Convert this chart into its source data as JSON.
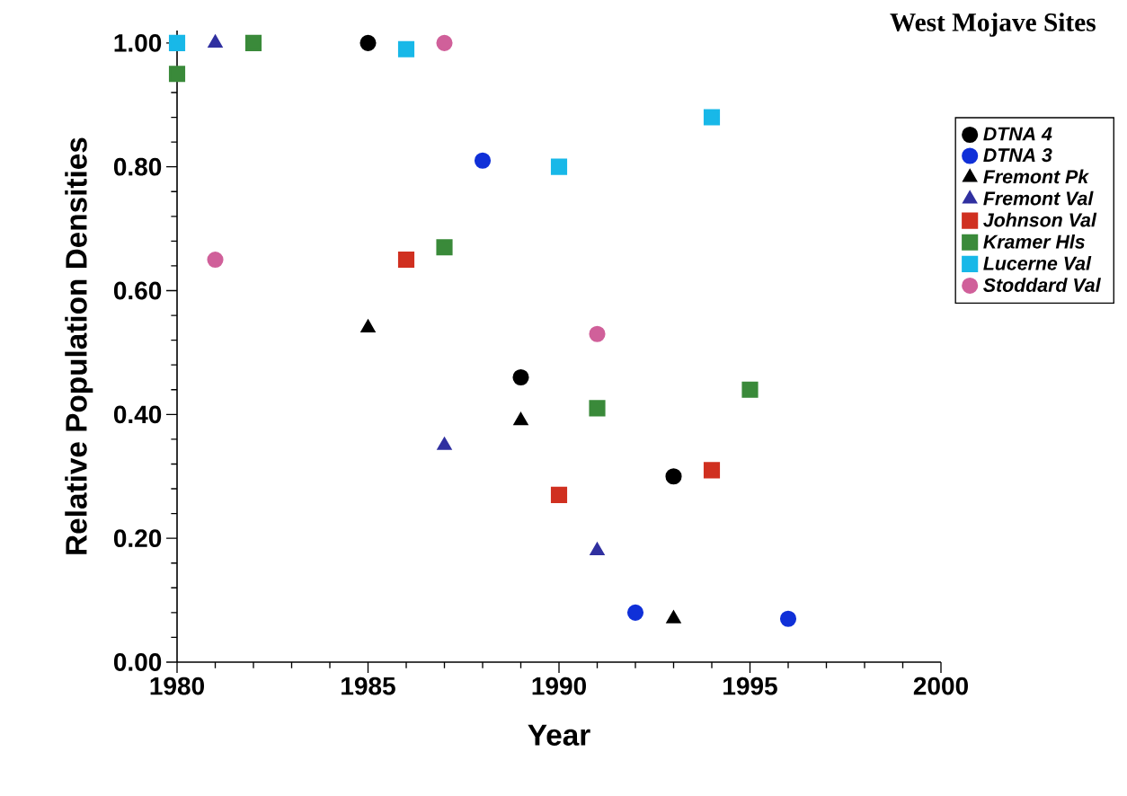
{
  "chart_data": {
    "type": "scatter",
    "title": "West Mojave Sites",
    "xlabel": "Year",
    "ylabel": "Relative Population Densities",
    "xlim": [
      1980,
      2000
    ],
    "ylim": [
      0,
      1.02
    ],
    "xticks": [
      1980,
      {
        "value": 1981,
        "label": null
      },
      {
        "value": 1982,
        "label": null
      },
      {
        "value": 1983,
        "label": null
      },
      {
        "value": 1984,
        "label": null
      },
      1985,
      {
        "value": 1986,
        "label": null
      },
      {
        "value": 1987,
        "label": null
      },
      {
        "value": 1988,
        "label": null
      },
      {
        "value": 1989,
        "label": null
      },
      1990,
      {
        "value": 1991,
        "label": null
      },
      {
        "value": 1992,
        "label": null
      },
      {
        "value": 1993,
        "label": null
      },
      {
        "value": 1994,
        "label": null
      },
      1995,
      {
        "value": 1996,
        "label": null
      },
      {
        "value": 1997,
        "label": null
      },
      {
        "value": 1998,
        "label": null
      },
      {
        "value": 1999,
        "label": null
      },
      2000
    ],
    "yticks": [
      {
        "value": 0,
        "label": "0.00"
      },
      {
        "value": 0.04,
        "label": null
      },
      {
        "value": 0.08,
        "label": null
      },
      {
        "value": 0.12,
        "label": null
      },
      {
        "value": 0.16,
        "label": null
      },
      {
        "value": 0.2,
        "label": "0.20"
      },
      {
        "value": 0.24,
        "label": null
      },
      {
        "value": 0.28,
        "label": null
      },
      {
        "value": 0.32,
        "label": null
      },
      {
        "value": 0.36,
        "label": null
      },
      {
        "value": 0.4,
        "label": "0.40"
      },
      {
        "value": 0.44,
        "label": null
      },
      {
        "value": 0.48,
        "label": null
      },
      {
        "value": 0.52,
        "label": null
      },
      {
        "value": 0.56,
        "label": null
      },
      {
        "value": 0.6,
        "label": "0.60"
      },
      {
        "value": 0.64,
        "label": null
      },
      {
        "value": 0.68,
        "label": null
      },
      {
        "value": 0.72,
        "label": null
      },
      {
        "value": 0.76,
        "label": null
      },
      {
        "value": 0.8,
        "label": "0.80"
      },
      {
        "value": 0.84,
        "label": null
      },
      {
        "value": 0.88,
        "label": null
      },
      {
        "value": 0.92,
        "label": null
      },
      {
        "value": 0.96,
        "label": null
      },
      {
        "value": 1.0,
        "label": "1.00"
      }
    ],
    "legend": "top right",
    "series": [
      {
        "name": "DTNA 4",
        "color": "#000000",
        "marker": "circle",
        "x": [
          1985,
          1989,
          1993
        ],
        "values": [
          1.0,
          0.46,
          0.3
        ]
      },
      {
        "name": "DTNA 3",
        "color": "#1030d8",
        "marker": "circle",
        "x": [
          1988,
          1992,
          1996
        ],
        "values": [
          0.81,
          0.08,
          0.07
        ]
      },
      {
        "name": "Fremont Pk",
        "color": "#000000",
        "marker": "triangle",
        "x": [
          1985,
          1989,
          1993
        ],
        "values": [
          0.54,
          0.39,
          0.07
        ]
      },
      {
        "name": "Fremont Val",
        "color": "#3030a0",
        "marker": "triangle",
        "x": [
          1981,
          1987,
          1991
        ],
        "values": [
          1.0,
          0.35,
          0.18
        ]
      },
      {
        "name": "Johnson Val",
        "color": "#d03020",
        "marker": "square",
        "x": [
          1986,
          1990,
          1994
        ],
        "values": [
          0.65,
          0.27,
          0.31
        ]
      },
      {
        "name": "Kramer Hls",
        "color": "#3a8a3a",
        "marker": "square",
        "x": [
          1980,
          1982,
          1987,
          1991,
          1995
        ],
        "values": [
          0.95,
          1.0,
          0.67,
          0.41,
          0.44
        ]
      },
      {
        "name": "Lucerne Val",
        "color": "#18b8e8",
        "marker": "square",
        "x": [
          1980,
          1986,
          1990,
          1994
        ],
        "values": [
          1.0,
          0.99,
          0.8,
          0.88
        ]
      },
      {
        "name": "Stoddard Val",
        "color": "#d0609a",
        "marker": "circle",
        "x": [
          1981,
          1987,
          1991
        ],
        "values": [
          0.65,
          1.0,
          0.53
        ]
      }
    ]
  }
}
